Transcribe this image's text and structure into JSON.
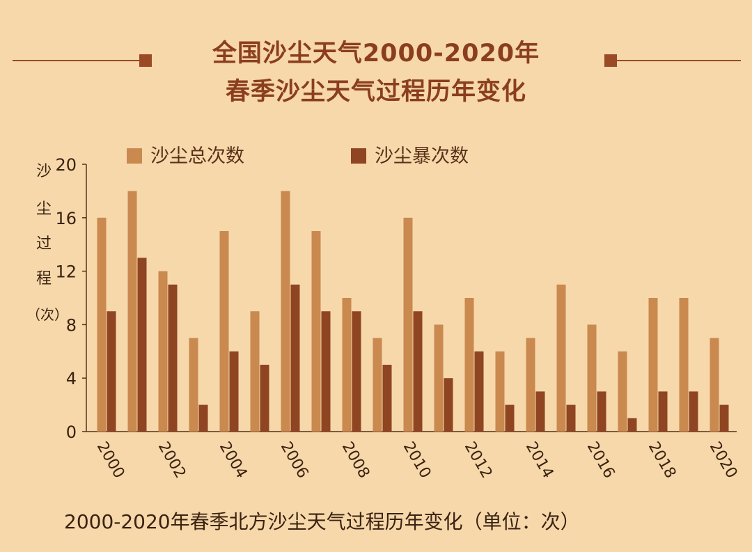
{
  "header": {
    "title_line1": "全国沙尘天气2000-2020年",
    "title_line2": "春季沙尘天气过程历年变化"
  },
  "caption": "2000-2020年春季北方沙尘天气过程历年变化（单位：次）",
  "colors": {
    "background": "#f6d8ab",
    "total_bar": "#c9894f",
    "storm_bar": "#8f4422",
    "title": "#8b3e1e",
    "axis": "#5a3018"
  },
  "chart_data": {
    "type": "bar",
    "title": "全国沙尘天气2000-2020年 春季沙尘天气过程历年变化",
    "ylabel": "沙尘过程（次）",
    "ylabel_chars": [
      "沙",
      "尘",
      "过",
      "程",
      "（次）"
    ],
    "xlabel": "",
    "ylim": [
      0,
      20
    ],
    "yticks": [
      0,
      4,
      8,
      12,
      16,
      20
    ],
    "x_tick_labels": [
      "2000",
      "2002",
      "2004",
      "2006",
      "2008",
      "2010",
      "2012",
      "2014",
      "2016",
      "2018",
      "2020"
    ],
    "categories": [
      "2000",
      "2001",
      "2002",
      "2003",
      "2004",
      "2005",
      "2006",
      "2007",
      "2008",
      "2009",
      "2010",
      "2011",
      "2012",
      "2013",
      "2014",
      "2015",
      "2016",
      "2017",
      "2018",
      "2019",
      "2020"
    ],
    "series": [
      {
        "name": "沙尘总次数",
        "color": "#c9894f",
        "values": [
          16,
          18,
          12,
          7,
          15,
          9,
          18,
          15,
          10,
          7,
          16,
          8,
          10,
          6,
          7,
          11,
          8,
          6,
          10,
          10,
          7
        ]
      },
      {
        "name": "沙尘暴次数",
        "color": "#8f4422",
        "values": [
          9,
          13,
          11,
          2,
          6,
          5,
          11,
          9,
          9,
          5,
          9,
          4,
          6,
          2,
          3,
          2,
          3,
          1,
          3,
          3,
          2
        ]
      }
    ],
    "legend_position": "top",
    "grid": false
  }
}
